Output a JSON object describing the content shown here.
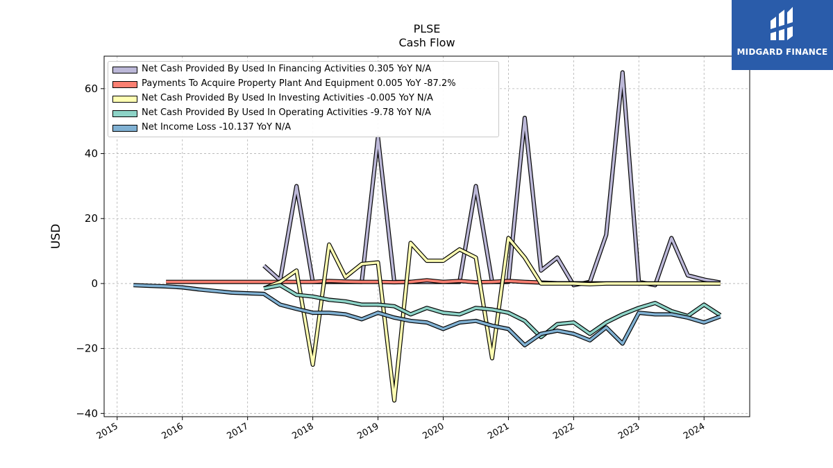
{
  "brand": {
    "name": "MIDGARD FINANCE",
    "bg_color": "#2a5caa",
    "icon": "midgard-logo-icon"
  },
  "chart_data": {
    "type": "line",
    "title": "PLSE",
    "subtitle": "Cash Flow",
    "xlabel": "",
    "ylabel": "USD",
    "xlim": [
      2014.8,
      2024.7
    ],
    "ylim": [
      -41,
      70
    ],
    "x_ticks": [
      2015,
      2016,
      2017,
      2018,
      2019,
      2020,
      2021,
      2022,
      2023,
      2024
    ],
    "y_ticks": [
      -40,
      -20,
      0,
      20,
      40,
      60
    ],
    "y_tick_labels": [
      "−40",
      "−20",
      "0",
      "20",
      "40",
      "60"
    ],
    "grid": true,
    "legend_position": "top-left",
    "series": [
      {
        "name": "Net Cash Provided By Used In Financing Activities  0.305 YoY N/A",
        "color": "#bcb8d8",
        "points": [
          [
            2017.25,
            5.5
          ],
          [
            2017.5,
            1.0
          ],
          [
            2017.75,
            30
          ],
          [
            2018.0,
            0.5
          ],
          [
            2018.25,
            0.5
          ],
          [
            2018.5,
            0.5
          ],
          [
            2018.75,
            0.5
          ],
          [
            2019.0,
            45
          ],
          [
            2019.25,
            0.5
          ],
          [
            2019.5,
            0.5
          ],
          [
            2019.75,
            0.5
          ],
          [
            2020.0,
            0.5
          ],
          [
            2020.25,
            0.5
          ],
          [
            2020.5,
            30
          ],
          [
            2020.75,
            0.5
          ],
          [
            2021.0,
            0.5
          ],
          [
            2021.25,
            51
          ],
          [
            2021.5,
            4
          ],
          [
            2021.75,
            8
          ],
          [
            2022.0,
            -0.5
          ],
          [
            2022.25,
            0.5
          ],
          [
            2022.5,
            15
          ],
          [
            2022.75,
            65
          ],
          [
            2023.0,
            0.5
          ],
          [
            2023.25,
            -0.5
          ],
          [
            2023.5,
            14
          ],
          [
            2023.75,
            2.5
          ],
          [
            2024.0,
            1.2
          ],
          [
            2024.25,
            0.3
          ]
        ]
      },
      {
        "name": "Payments To Acquire Property Plant And Equipment  0.005 YoY -87.2%",
        "color": "#fb8072",
        "points": [
          [
            2015.75,
            0.5
          ],
          [
            2016.0,
            0.5
          ],
          [
            2016.5,
            0.5
          ],
          [
            2017.0,
            0.5
          ],
          [
            2017.5,
            0.5
          ],
          [
            2018.0,
            0.5
          ],
          [
            2018.25,
            0.8
          ],
          [
            2018.5,
            0.6
          ],
          [
            2018.75,
            0.5
          ],
          [
            2019.0,
            0.5
          ],
          [
            2019.25,
            0.4
          ],
          [
            2019.5,
            0.5
          ],
          [
            2019.75,
            1.0
          ],
          [
            2020.0,
            0.5
          ],
          [
            2020.25,
            0.8
          ],
          [
            2020.5,
            0.4
          ],
          [
            2020.75,
            0.5
          ],
          [
            2021.0,
            0.8
          ],
          [
            2021.25,
            0.5
          ],
          [
            2021.5,
            0.3
          ],
          [
            2021.75,
            0.1
          ],
          [
            2022.0,
            0.1
          ],
          [
            2022.5,
            0.05
          ],
          [
            2023.0,
            0.02
          ],
          [
            2023.5,
            0.01
          ],
          [
            2024.0,
            0.01
          ],
          [
            2024.25,
            0.005
          ]
        ]
      },
      {
        "name": "Net Cash Provided By Used In Investing Activities  -0.005 YoY N/A",
        "color": "#ffffb3",
        "points": [
          [
            2017.25,
            -1.5
          ],
          [
            2017.5,
            0.5
          ],
          [
            2017.75,
            4
          ],
          [
            2018.0,
            -25
          ],
          [
            2018.25,
            12
          ],
          [
            2018.5,
            2
          ],
          [
            2018.75,
            6
          ],
          [
            2019.0,
            6.5
          ],
          [
            2019.25,
            -36
          ],
          [
            2019.5,
            12.5
          ],
          [
            2019.75,
            7
          ],
          [
            2020.0,
            7
          ],
          [
            2020.25,
            10.5
          ],
          [
            2020.5,
            8
          ],
          [
            2020.75,
            -23
          ],
          [
            2021.0,
            14
          ],
          [
            2021.25,
            8
          ],
          [
            2021.5,
            0
          ],
          [
            2021.75,
            0
          ],
          [
            2022.0,
            0
          ],
          [
            2022.25,
            -0.2
          ],
          [
            2022.5,
            0
          ],
          [
            2022.75,
            0
          ],
          [
            2023.0,
            0
          ],
          [
            2023.25,
            0
          ],
          [
            2023.5,
            0
          ],
          [
            2023.75,
            0
          ],
          [
            2024.0,
            0
          ],
          [
            2024.25,
            -0.005
          ]
        ]
      },
      {
        "name": "Net Cash Provided By Used In Operating Activities  -9.78 YoY N/A",
        "color": "#8dd3c7",
        "points": [
          [
            2017.25,
            -1.5
          ],
          [
            2017.5,
            -0.5
          ],
          [
            2017.75,
            -3.5
          ],
          [
            2018.0,
            -4
          ],
          [
            2018.25,
            -5
          ],
          [
            2018.5,
            -5.5
          ],
          [
            2018.75,
            -6.5
          ],
          [
            2019.0,
            -6.5
          ],
          [
            2019.25,
            -7
          ],
          [
            2019.5,
            -9.5
          ],
          [
            2019.75,
            -7.5
          ],
          [
            2020.0,
            -9
          ],
          [
            2020.25,
            -9.5
          ],
          [
            2020.5,
            -7.5
          ],
          [
            2020.75,
            -8
          ],
          [
            2021.0,
            -9
          ],
          [
            2021.25,
            -11.5
          ],
          [
            2021.5,
            -16.5
          ],
          [
            2021.75,
            -12.5
          ],
          [
            2022.0,
            -12
          ],
          [
            2022.25,
            -15.5
          ],
          [
            2022.5,
            -12
          ],
          [
            2022.75,
            -9.5
          ],
          [
            2023.0,
            -7.5
          ],
          [
            2023.25,
            -6
          ],
          [
            2023.5,
            -8.5
          ],
          [
            2023.75,
            -10
          ],
          [
            2024.0,
            -6.5
          ],
          [
            2024.25,
            -9.78
          ]
        ]
      },
      {
        "name": "Net Income Loss  -10.137 YoY N/A",
        "color": "#80b1d3",
        "points": [
          [
            2015.25,
            -0.5
          ],
          [
            2015.5,
            -0.7
          ],
          [
            2015.75,
            -0.9
          ],
          [
            2016.0,
            -1.2
          ],
          [
            2016.25,
            -1.8
          ],
          [
            2016.5,
            -2.3
          ],
          [
            2016.75,
            -2.8
          ],
          [
            2017.0,
            -3.0
          ],
          [
            2017.25,
            -3.2
          ],
          [
            2017.5,
            -6.5
          ],
          [
            2017.75,
            -7.8
          ],
          [
            2018.0,
            -9
          ],
          [
            2018.25,
            -9
          ],
          [
            2018.5,
            -9.5
          ],
          [
            2018.75,
            -11
          ],
          [
            2019.0,
            -9
          ],
          [
            2019.25,
            -10.5
          ],
          [
            2019.5,
            -11.5
          ],
          [
            2019.75,
            -12
          ],
          [
            2020.0,
            -14
          ],
          [
            2020.25,
            -12
          ],
          [
            2020.5,
            -11.5
          ],
          [
            2020.75,
            -13
          ],
          [
            2021.0,
            -14
          ],
          [
            2021.25,
            -19
          ],
          [
            2021.5,
            -15.5
          ],
          [
            2021.75,
            -14.5
          ],
          [
            2022.0,
            -15.5
          ],
          [
            2022.25,
            -17.5
          ],
          [
            2022.5,
            -13.5
          ],
          [
            2022.75,
            -18.5
          ],
          [
            2023.0,
            -9
          ],
          [
            2023.25,
            -9.5
          ],
          [
            2023.5,
            -9.5
          ],
          [
            2023.75,
            -10.5
          ],
          [
            2024.0,
            -12
          ],
          [
            2024.25,
            -10.137
          ]
        ]
      }
    ]
  }
}
